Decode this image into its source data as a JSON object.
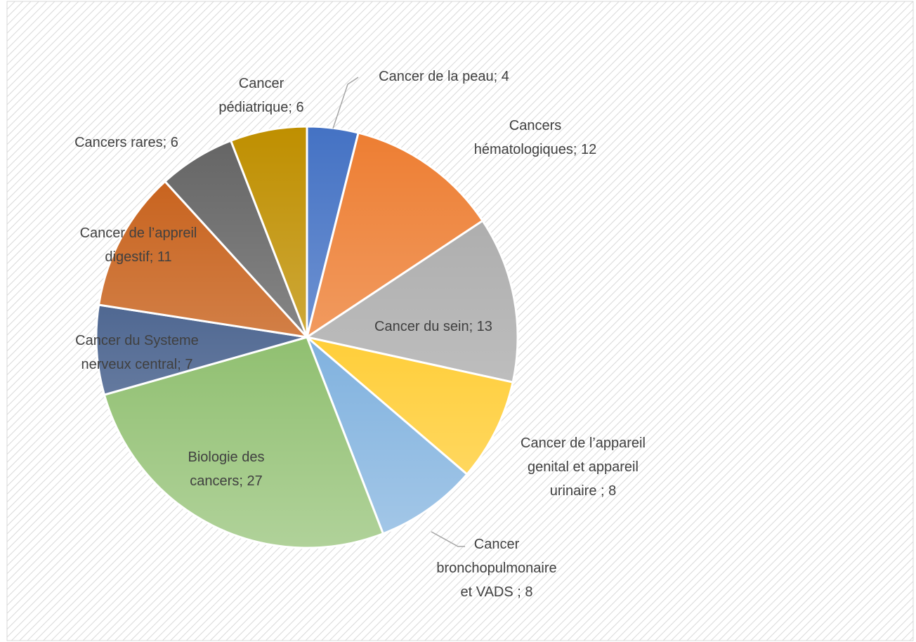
{
  "chart_data": {
    "type": "pie",
    "categories": [
      [
        "Cancer de la peau; 4"
      ],
      [
        "Cancers",
        "hématologiques; 12"
      ],
      [
        "Cancer du sein; 13"
      ],
      [
        "Cancer de l’appareil",
        "genital et appareil",
        "urinaire ; 8"
      ],
      [
        "Cancer",
        "bronchopulmonaire",
        "et VADS ; 8"
      ],
      [
        "Biologie des",
        "cancers; 27"
      ],
      [
        "Cancer du Systeme",
        "nerveux central; 7"
      ],
      [
        "Cancer de l’appreil",
        "digestif; 11"
      ],
      [
        "Cancers rares; 6"
      ],
      [
        "Cancer",
        "pédiatrique; 6"
      ]
    ],
    "values": [
      4,
      12,
      13,
      8,
      8,
      27,
      7,
      11,
      6,
      6
    ],
    "colors": [
      "#4472c4",
      "#ed7d31",
      "#a5a5a5",
      "#ffc000",
      "#5b9bd5",
      "#70ad47",
      "#264478",
      "#c55a11",
      "#636363",
      "#bf8f00"
    ]
  }
}
